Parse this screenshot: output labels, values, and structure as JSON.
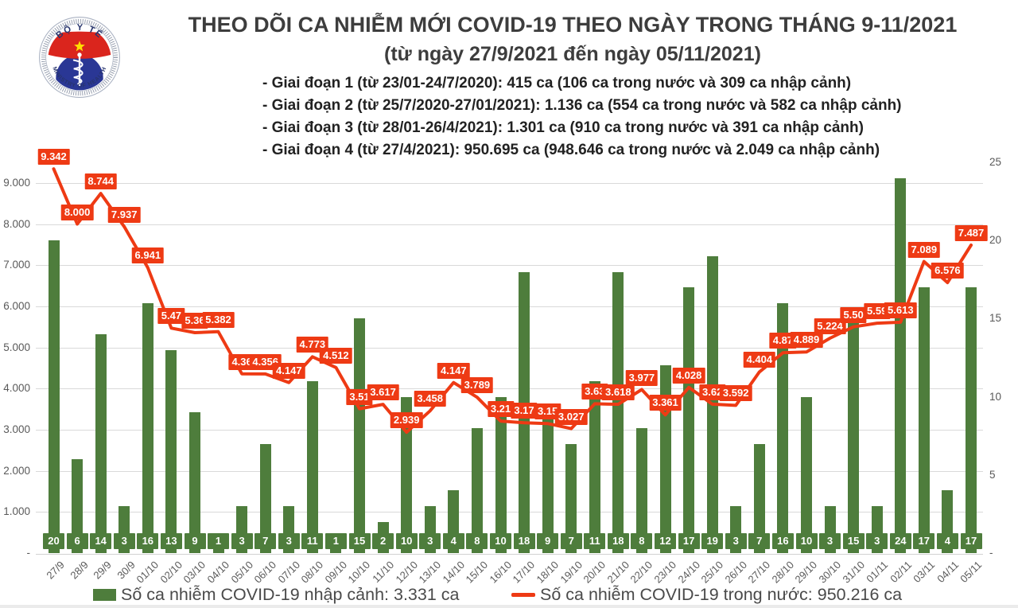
{
  "header": {
    "title": "THEO DÕI CA NHIỄM MỚI COVID-19 THEO NGÀY TRONG THÁNG 9-11/2021",
    "subtitle": "(từ ngày 27/9/2021 đến ngày 05/11/2021)",
    "bullets": [
      "- Giai đoạn 1 (từ 23/01-24/7/2020): 415 ca (106 ca trong nước và 309 ca nhập cảnh)",
      "- Giai đoạn 2 (từ 25/7/2020-27/01/2021): 1.136 ca (554 ca trong nước và 582 ca nhập cảnh)",
      "- Giai đoạn 3 (từ 28/01-26/4/2021): 1.301 ca (910 ca trong nước và 391 ca nhập cảnh)",
      "- Giai đoạn 4 (từ 27/4/2021): 950.695 ca (948.646 ca trong nước và 2.049 ca nhập cảnh)"
    ]
  },
  "logo": {
    "top_text": "BỘ Y TẾ",
    "bottom_text": "MINISTRY OF HEALTH"
  },
  "chart_data": {
    "type": "combo",
    "categories": [
      "27/9",
      "28/9",
      "29/9",
      "30/9",
      "01/10",
      "02/10",
      "03/10",
      "04/10",
      "05/10",
      "06/10",
      "07/10",
      "08/10",
      "09/10",
      "10/10",
      "11/10",
      "12/10",
      "13/10",
      "14/10",
      "15/10",
      "16/10",
      "17/10",
      "18/10",
      "19/10",
      "20/10",
      "21/10",
      "22/10",
      "23/10",
      "24/10",
      "25/10",
      "26/10",
      "27/10",
      "28/10",
      "29/10",
      "30/10",
      "31/10",
      "01/11",
      "02/11",
      "03/11",
      "04/11",
      "05/11"
    ],
    "series": [
      {
        "name": "Số ca nhiễm COVID-19 nhập cảnh: 3.331 ca",
        "type": "bar",
        "axis": "right",
        "color": "#4e7d3c",
        "values": [
          20,
          6,
          14,
          3,
          16,
          13,
          9,
          1,
          3,
          7,
          3,
          11,
          1,
          15,
          2,
          10,
          3,
          4,
          8,
          10,
          18,
          9,
          7,
          11,
          18,
          8,
          12,
          17,
          19,
          3,
          7,
          16,
          10,
          3,
          15,
          3,
          24,
          17,
          4,
          17
        ]
      },
      {
        "name": "Số ca nhiễm COVID-19 trong nước: 950.216 ca",
        "type": "line",
        "axis": "left",
        "color": "#ee3a14",
        "values": [
          9342,
          8000,
          8744,
          7937,
          6941,
          5470,
          5360,
          5382,
          4360,
          4356,
          4147,
          4773,
          4512,
          3510,
          3617,
          2939,
          3458,
          4147,
          3789,
          3210,
          3170,
          3150,
          3027,
          3630,
          3618,
          3977,
          3361,
          4028,
          3620,
          3592,
          4404,
          4870,
          4889,
          5224,
          5500,
          5590,
          5613,
          7089,
          6576,
          7487
        ],
        "labels": [
          "9.342",
          "8.000",
          "8.744",
          "7.937",
          "6.941",
          "5.47",
          "5.36",
          "5.382",
          "4.36",
          "4.356",
          "4.147",
          "4.773",
          "4.512",
          "3.51",
          "3.617",
          "2.939",
          "3.458",
          "4.147",
          "3.789",
          "3.21",
          "3.17",
          "3.15",
          "3.027",
          "3.63",
          "3.618",
          "3.977",
          "3.361",
          "4.028",
          "3.62",
          "3.592",
          "4.404",
          "4.87",
          "4.889",
          "5.224",
          "5.50",
          "5.59",
          "5.613",
          "7.089",
          "6.576",
          "7.487"
        ]
      }
    ],
    "left_axis": {
      "min": 0,
      "max": 9500,
      "tick_step": 1000,
      "ticks": [
        "-",
        "1.000",
        "2.000",
        "3.000",
        "4.000",
        "5.000",
        "6.000",
        "7.000",
        "8.000",
        "9.000"
      ]
    },
    "right_axis": {
      "min": 0,
      "max": 25,
      "tick_step": 5,
      "ticks": [
        "-",
        "5",
        "10",
        "15",
        "20",
        "25"
      ]
    },
    "grid": "horizontal",
    "legend_position": "bottom"
  },
  "legend": {
    "items": [
      {
        "swatch": "bar",
        "color": "#4e7d3c",
        "label": "Số ca nhiễm COVID-19 nhập cảnh: 3.331 ca"
      },
      {
        "swatch": "line",
        "color": "#ee3a14",
        "label": "Số ca nhiễm COVID-19 trong nước: 950.216 ca"
      }
    ]
  }
}
